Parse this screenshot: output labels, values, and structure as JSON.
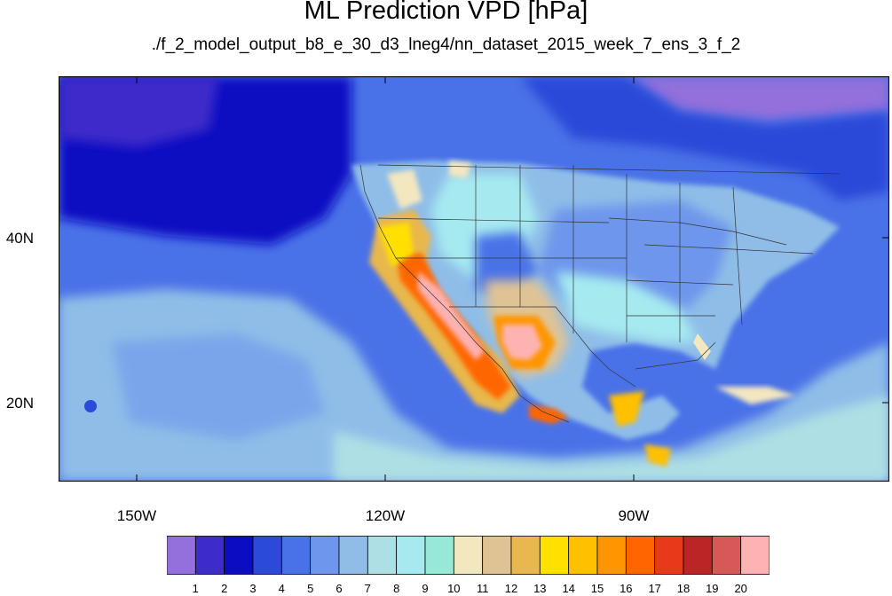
{
  "title": "ML Prediction VPD [hPa]",
  "subtitle": "./f_2_model_output_b8_e_30_d3_lneg4/nn_dataset_2015_week_7_ens_3_f_2",
  "axes": {
    "lat_labels": [
      "40N",
      "20N"
    ],
    "lon_labels": [
      "150W",
      "120W",
      "90W"
    ]
  },
  "colorbar": {
    "labels": [
      "1",
      "2",
      "3",
      "4",
      "5",
      "6",
      "7",
      "8",
      "9",
      "10",
      "11",
      "12",
      "13",
      "14",
      "15",
      "16",
      "17",
      "18",
      "19",
      "20"
    ],
    "colors": [
      "#9370db",
      "#3d2cc9",
      "#0c0cc2",
      "#2c4ad8",
      "#4a72e8",
      "#6e96ec",
      "#8fbde8",
      "#aedfe4",
      "#a6eaf0",
      "#98e8d8",
      "#f3e7c0",
      "#e0c394",
      "#e8b84e",
      "#ffe000",
      "#ffc000",
      "#ff9500",
      "#ff6600",
      "#e8391a",
      "#bb2525",
      "#d85757",
      "#ffb2b2"
    ]
  }
}
